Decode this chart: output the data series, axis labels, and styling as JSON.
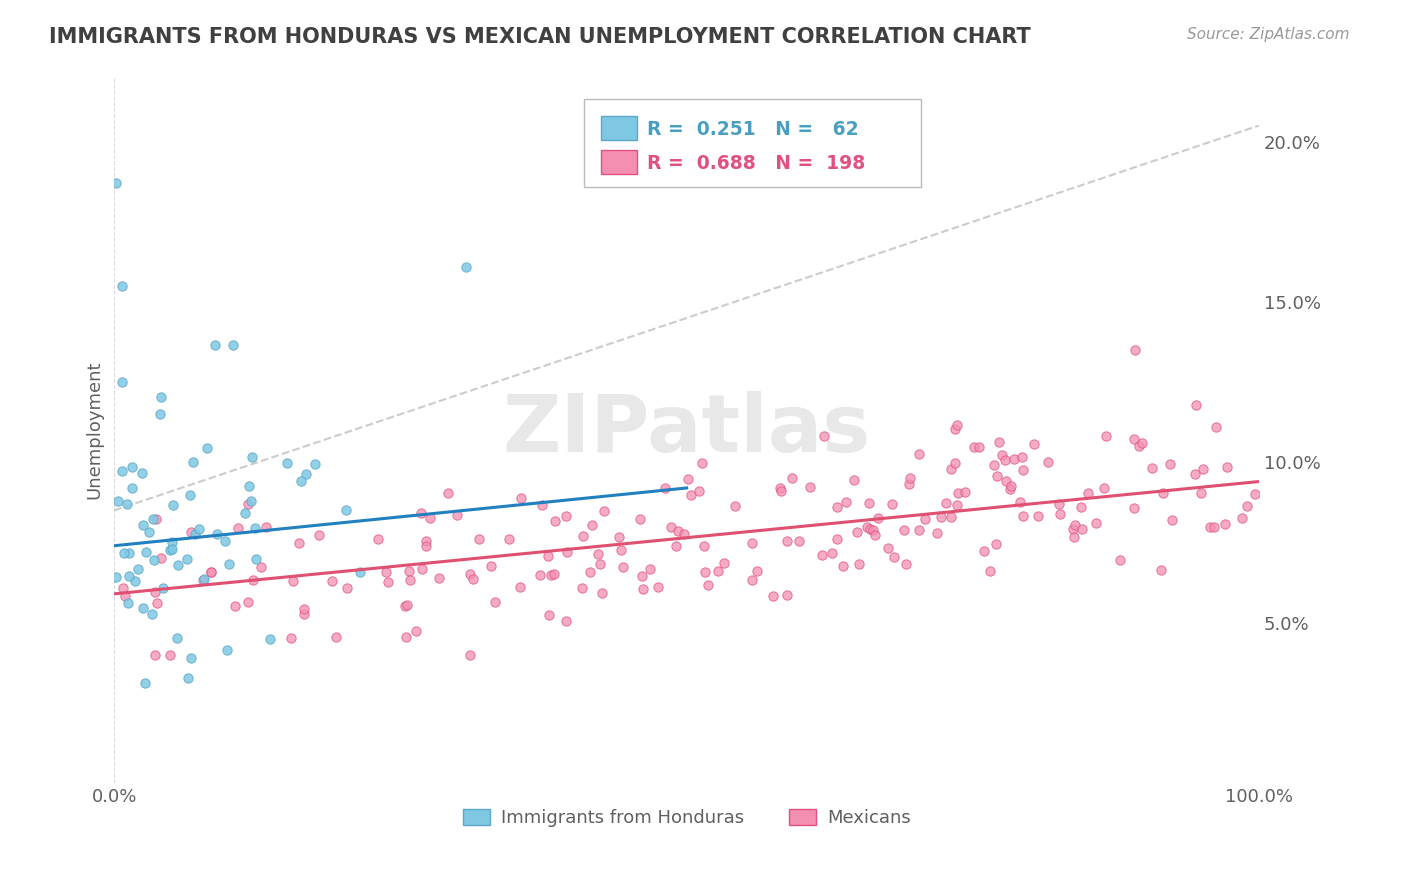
{
  "title": "IMMIGRANTS FROM HONDURAS VS MEXICAN UNEMPLOYMENT CORRELATION CHART",
  "source": "Source: ZipAtlas.com",
  "ylabel": "Unemployment",
  "watermark": "ZIPatlas",
  "xlim": [
    0,
    1.0
  ],
  "ylim": [
    0,
    0.22
  ],
  "y_ticks": [
    0.05,
    0.1,
    0.15,
    0.2
  ],
  "y_tick_labels": [
    "5.0%",
    "10.0%",
    "15.0%",
    "20.0%"
  ],
  "legend_entries": [
    {
      "label": "Immigrants from Honduras",
      "color": "#7ec8e3",
      "edge_color": "#5ba8c8",
      "text_color": "#4a9fc0",
      "R": "0.251",
      "N": "62"
    },
    {
      "label": "Mexicans",
      "color": "#f48fb1",
      "edge_color": "#e05080",
      "text_color": "#e05080",
      "R": "0.688",
      "N": "198"
    }
  ],
  "trend_blue": {
    "color": "#2080c0",
    "x_start": 0.0,
    "x_end": 0.5,
    "y_start": 0.074,
    "y_end": 0.092
  },
  "trend_pink": {
    "color": "#e05070",
    "x_start": 0.0,
    "x_end": 1.0,
    "y_start": 0.059,
    "y_end": 0.094
  },
  "dash_line": {
    "color": "#aaaaaa",
    "x_start": 0.0,
    "x_end": 1.0,
    "y_start": 0.085,
    "y_end": 0.205
  },
  "grid_color": "#cccccc",
  "background_color": "#ffffff",
  "title_color": "#404040",
  "axis_label_color": "#606060"
}
